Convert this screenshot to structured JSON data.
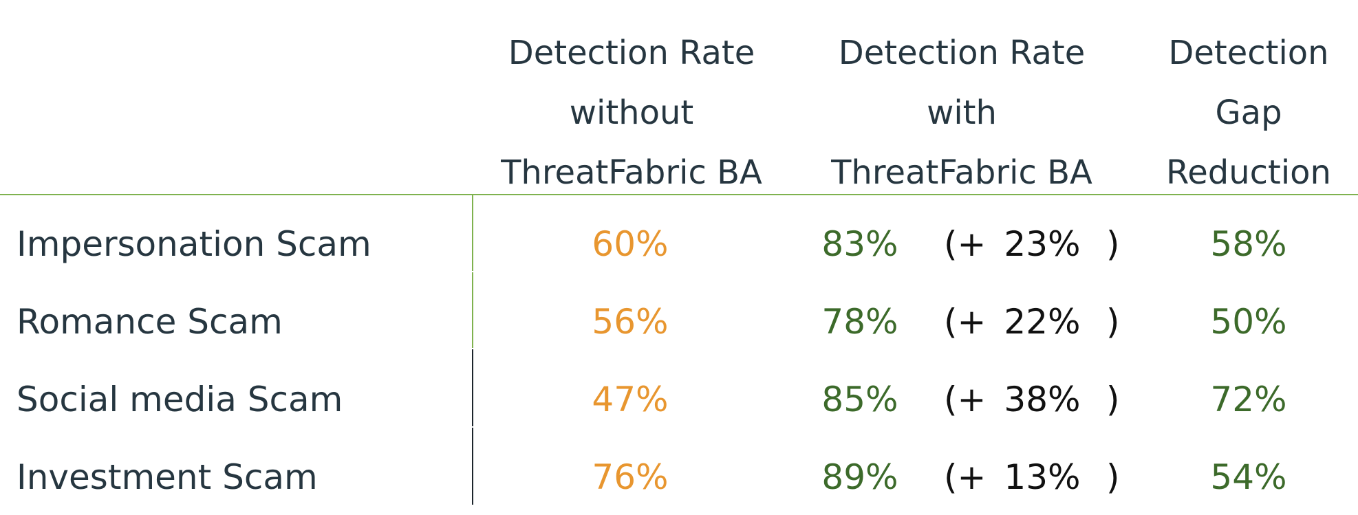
{
  "chart_data": {
    "type": "table",
    "columns": [
      [
        "Detection Rate",
        "without",
        "ThreatFabric BA"
      ],
      [
        "Detection Rate",
        "with",
        "ThreatFabric BA"
      ],
      [
        "Detection",
        "Gap",
        "Reduction"
      ]
    ],
    "rows": [
      {
        "category": "Impersonation Scam",
        "without": "60%",
        "with": "83%",
        "diff_prefix": "(+",
        "diff": "23%",
        "diff_suffix": ")",
        "gap": "58%"
      },
      {
        "category": "Romance Scam",
        "without": "56%",
        "with": "78%",
        "diff_prefix": "(+",
        "diff": "22%",
        "diff_suffix": ")",
        "gap": "50%"
      },
      {
        "category": "Social media Scam",
        "without": "47%",
        "with": "85%",
        "diff_prefix": "(+",
        "diff": "38%",
        "diff_suffix": ")",
        "gap": "72%"
      },
      {
        "category": "Investment Scam",
        "without": "76%",
        "with": "89%",
        "diff_prefix": "(+",
        "diff": "13%",
        "diff_suffix": ")",
        "gap": "54%"
      }
    ],
    "colors": {
      "text": "#263640",
      "without_value": "#e8962f",
      "with_value": "#3c6a2a",
      "gap_value": "#3c6a2a",
      "difference": "#111111",
      "rule": "#7fb24f",
      "divider_dark": "#1c252c"
    }
  }
}
